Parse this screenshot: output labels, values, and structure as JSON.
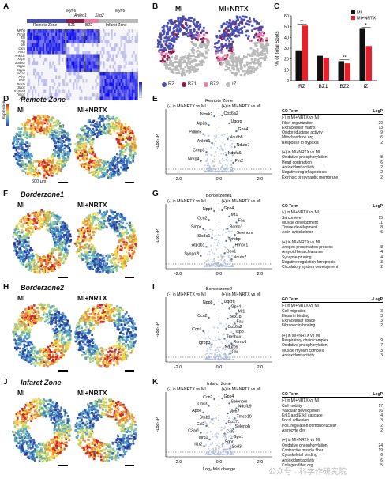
{
  "panelA": {
    "label": "A",
    "header_left": "Myh6",
    "header_right": "Myh6",
    "sub_header": "Ankrd1",
    "sub_header2": "Xirp2",
    "zones": [
      "Remote Zone",
      "BZ1",
      "BZ2",
      "Infarct Zone"
    ],
    "genes": [
      "Myh6",
      "Tnni3",
      "Ttn",
      "Pln",
      "Mb",
      "Ckm",
      "Ryr2",
      "Ankrd1",
      "Xirp2",
      "Sorbs2",
      "Nppb",
      "Nppa",
      "Acta1",
      "Pfn1",
      "Fhl1",
      "Postn",
      "Spp1",
      "S100a4",
      "Timp1",
      "Argl"
    ]
  },
  "panelB": {
    "label": "B",
    "left_title": "MI",
    "right_title": "MI+NRTX",
    "legend": [
      {
        "name": "RZ",
        "color": "#4b4fb0"
      },
      {
        "name": "BZ1",
        "color": "#8c1d4a"
      },
      {
        "name": "BZ2",
        "color": "#e87ea6"
      },
      {
        "name": "IZ",
        "color": "#b9b9b9"
      }
    ]
  },
  "panelC": {
    "label": "C",
    "legend_mi": "MI",
    "legend_nrtx": "MI+NRTX",
    "sig_labels": [
      "**",
      "**",
      "*"
    ]
  },
  "chart_data": {
    "type": "bar",
    "categories": [
      "RZ",
      "BZ1",
      "BZ2",
      "IZ"
    ],
    "series": [
      {
        "name": "MI",
        "values": [
          28,
          23,
          18,
          48
        ],
        "color": "#111111"
      },
      {
        "name": "MI+NRTX",
        "values": [
          51,
          21,
          16,
          32
        ],
        "color": "#e8202a"
      }
    ],
    "ylabel": "% of Total Spots",
    "ylim": [
      0,
      60
    ],
    "yticks": [
      0,
      10,
      20,
      30,
      40,
      50,
      60
    ]
  },
  "rows": [
    {
      "heat_label": "D",
      "volc_label": "E",
      "title": "Remote Zone",
      "mi": "MI",
      "nrtx": "MI+NRTX",
      "expr_label": "Expression",
      "scale_text": "500 μm",
      "volc_title": "Remote Zone",
      "volc_left": "(-) in MI+NRTX vs MI",
      "volc_right": "(+) in MI+NRTX vs MI",
      "ylabel": "-Log₁₀P",
      "xticks": [
        "-2.0",
        "0.0",
        "2.0"
      ],
      "genes_left": [
        "Nmrk2",
        "Atp2a",
        "Pdlim5",
        "Ankrd1",
        "Ccnp3",
        "Ndrg4"
      ],
      "genes_right": [
        "Cox6a2",
        "Uqcrq",
        "Gpx4",
        "Ndufb8",
        "Ndufs7",
        "Ndufa6",
        "Pln2"
      ],
      "go_header": "GO Term",
      "go_pheader": "-LogP",
      "go_up_title": "(-) in MI+NRTX vs MI",
      "go_up": [
        [
          "Fiber organization",
          "20"
        ],
        [
          "Extracellular matrix",
          "13"
        ],
        [
          "Oxidoreductase activity",
          "9"
        ],
        [
          "Mitochondrion org",
          "6"
        ],
        [
          "Response to hypoxia",
          "2"
        ]
      ],
      "go_down_title": "(+) in MI+NRTX vs MI",
      "go_down": [
        [
          "Oxidative phosphorylation",
          "8"
        ],
        [
          "Heart contraction",
          "6"
        ],
        [
          "Antioxidant activity",
          "2"
        ],
        [
          "Negative reg of apoptosis",
          "2"
        ],
        [
          "Extrinsic presynaptic membrane",
          "2"
        ]
      ]
    },
    {
      "heat_label": "F",
      "volc_label": "G",
      "title": "Borderzone1",
      "mi": "MI",
      "nrtx": "MI+NRTX",
      "volc_title": "Borderzone1",
      "volc_left": "(-) in MI+NRTX vs MI",
      "volc_right": "(+) in MI+NRTX vs MI",
      "ylabel": "-Log₁₀P",
      "xticks": [
        "-2.0",
        "0.0",
        "2.0"
      ],
      "genes_left": [
        "Nppb",
        "Ccn2",
        "Smpx",
        "Slc8a1",
        "Atp1b1",
        "Synpo2l"
      ],
      "genes_right": [
        "Gpx4",
        "Mt1",
        "Fau",
        "Romo1",
        "Selenom",
        "Tyrobp",
        "Hmox1",
        "Gpx1",
        "Ndufs7"
      ],
      "go_header": "GO Term",
      "go_pheader": "-LogP",
      "go_up_title": "(-) in MI+NRTX vs MI",
      "go_up": [
        [
          "Sarcomere",
          "15"
        ],
        [
          "Muscle development",
          "11"
        ],
        [
          "Tissue development",
          "8"
        ],
        [
          "Actin cytoskeleton",
          "6"
        ]
      ],
      "go_down_title": "(+) in MI+NRTX vs MI",
      "go_down": [
        [
          "Antigen presentation process",
          "8"
        ],
        [
          "Amyloid beta clearance",
          "4"
        ],
        [
          "Synapse pruning",
          "4"
        ],
        [
          "Negative regulation ferroptosis",
          "3"
        ],
        [
          "Circulatory system development",
          "2"
        ]
      ]
    },
    {
      "heat_label": "H",
      "volc_label": "I",
      "title": "Borderzone2",
      "mi": "MI",
      "nrtx": "MI+NRTX",
      "volc_title": "Borderzone2",
      "volc_left": "(-) in MI+NRTX vs MI",
      "volc_right": "(+) in MI+NRTX vs MI",
      "ylabel": "-Log₁₀P",
      "xticks": [
        "-2.0",
        "0.0",
        "2.0"
      ],
      "genes_left": [
        "Nppb",
        "Ccn2",
        "Ccn1",
        "Igfbp3"
      ],
      "genes_right": [
        "Uqcrq",
        "Gpx4",
        "Mt1",
        "Bex18",
        "Fau",
        "Cox6a2",
        "Tspo",
        "Tmsb4x",
        "Romo1",
        "Ndufb9",
        "Clu"
      ],
      "go_header": "GO Term",
      "go_pheader": "-LogP",
      "go_up_title": "(-) in MI+NRTX vs MI",
      "go_up": [
        [
          "Cell migration",
          "3"
        ],
        [
          "Heparin binding",
          "3"
        ],
        [
          "Extracellular space",
          "3"
        ],
        [
          "Fibronectin binding",
          "2"
        ]
      ],
      "go_down_title": "(+) in MI+NRTX vs MI",
      "go_down": [
        [
          "Respiratory chain complex",
          "9"
        ],
        [
          "Oxidative phosphorylation",
          "7"
        ],
        [
          "Muscle myosin complex",
          "3"
        ],
        [
          "Antioxidant activity",
          "3"
        ]
      ]
    },
    {
      "heat_label": "J",
      "volc_label": "K",
      "title": "Infarct Zone",
      "mi": "MI",
      "nrtx": "MI+NRTX",
      "volc_title": "Infarct Zone",
      "volc_left": "(-) in MI+NRTX vs MI",
      "volc_right": "(+) in MI+NRTX vs MI",
      "ylabel": "-Log₁₀P",
      "xlabel": "Log₂ fold change",
      "xticks": [
        "-2.0",
        "0.0",
        "2.0"
      ],
      "genes_left": [
        "Ccn2",
        "Chil3",
        "Apoe",
        "Stab1",
        "Ccl2",
        "C3ar1",
        "Mrc1",
        "Il1r2"
      ],
      "genes_right": [
        "Gpx4",
        "Selenom",
        "Ndufb9",
        "Myh7",
        "Tmsb10",
        "Cox7c",
        "Selenoh",
        "Ccl9",
        "Gpx1",
        "Sqor",
        "Sod3"
      ],
      "go_header": "GO Term",
      "go_pheader": "-LogP",
      "go_up_title": "(-) in MI+NRTX vs MI",
      "go_up": [
        [
          "Cell motility",
          "17"
        ],
        [
          "Vascular development",
          "16"
        ],
        [
          "Erk1 and Erk2 cascade",
          "4"
        ],
        [
          "Focal adhesion",
          "3"
        ],
        [
          "Pos. regulation of mononuclear",
          "2"
        ],
        [
          "Astrocyte dev",
          "2"
        ]
      ],
      "go_down_title": "(+) in MI+NRTX vs MI",
      "go_down": [
        [
          "Oxidative phosphorylation",
          "24"
        ],
        [
          "Contractile muscle fiber",
          "19"
        ],
        [
          "Cytoskeletal binding",
          "6"
        ],
        [
          "Antioxidant activity",
          "6"
        ],
        [
          "Collagen fiber org",
          "5"
        ]
      ]
    }
  ],
  "watermark": "公众号 · 科学作研究院"
}
